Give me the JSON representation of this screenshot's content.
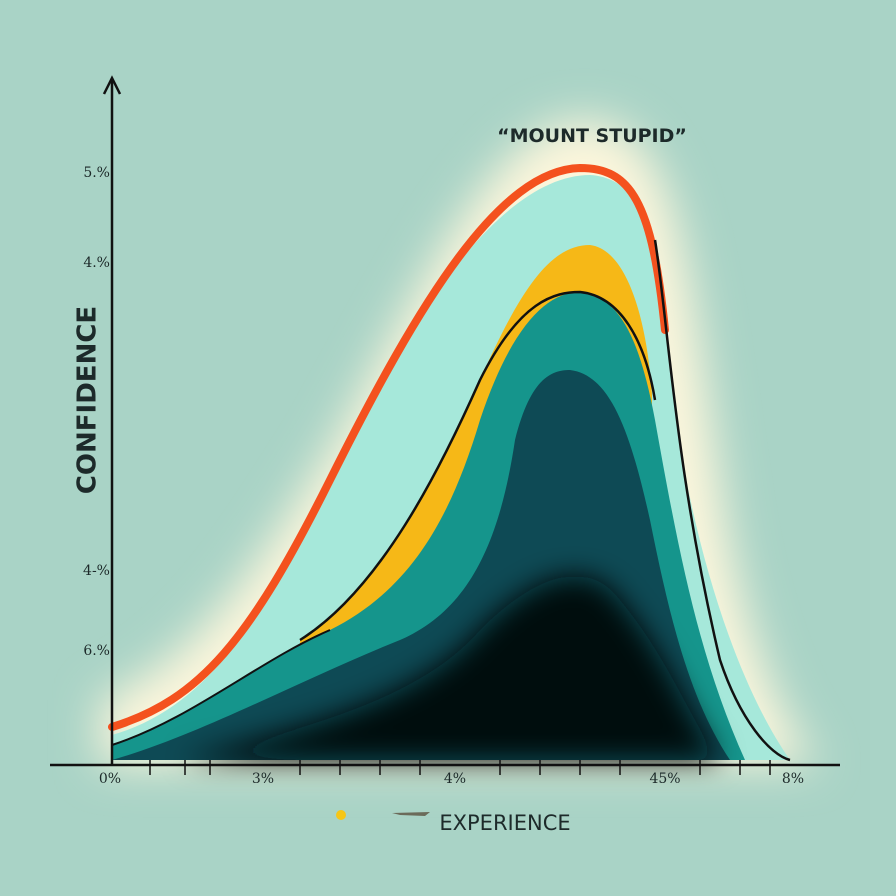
{
  "annotation": "“MOUNT STUPID”",
  "y_axis": {
    "label": "CONFIDENCE",
    "tick_labels": [
      "5.%",
      "4.%",
      "4-%",
      "6.%"
    ]
  },
  "x_axis": {
    "label": "EXPERIENCE",
    "tick_labels": [
      "0%",
      "3%",
      "4%",
      "45%",
      "8%"
    ]
  }
}
